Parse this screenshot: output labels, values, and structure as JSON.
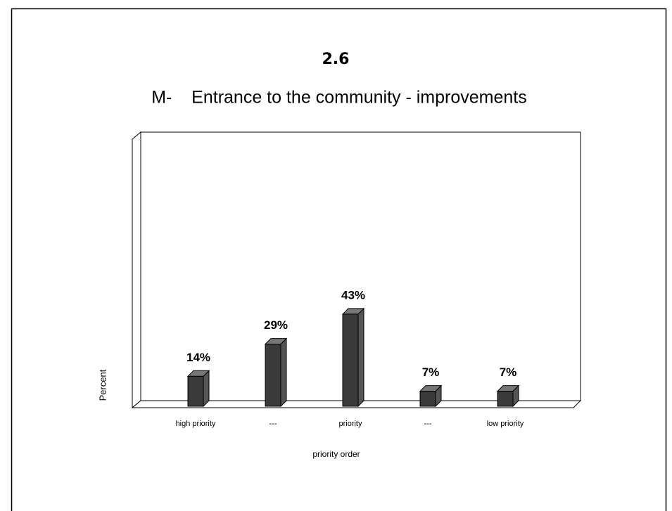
{
  "chart_data": {
    "type": "bar3d",
    "title": "2.6",
    "subtitle": "M-    Entrance to the community - improvements",
    "categories": [
      "high priority",
      "---",
      "priority",
      "---",
      "low priority"
    ],
    "values": [
      14,
      29,
      43,
      7,
      7
    ],
    "value_labels": [
      "14%",
      "29%",
      "43%",
      "7%",
      "7%"
    ],
    "color": "#3a3a3a",
    "ylim": [
      0,
      125
    ],
    "x_label": "priority order",
    "y_label": "Percent"
  }
}
